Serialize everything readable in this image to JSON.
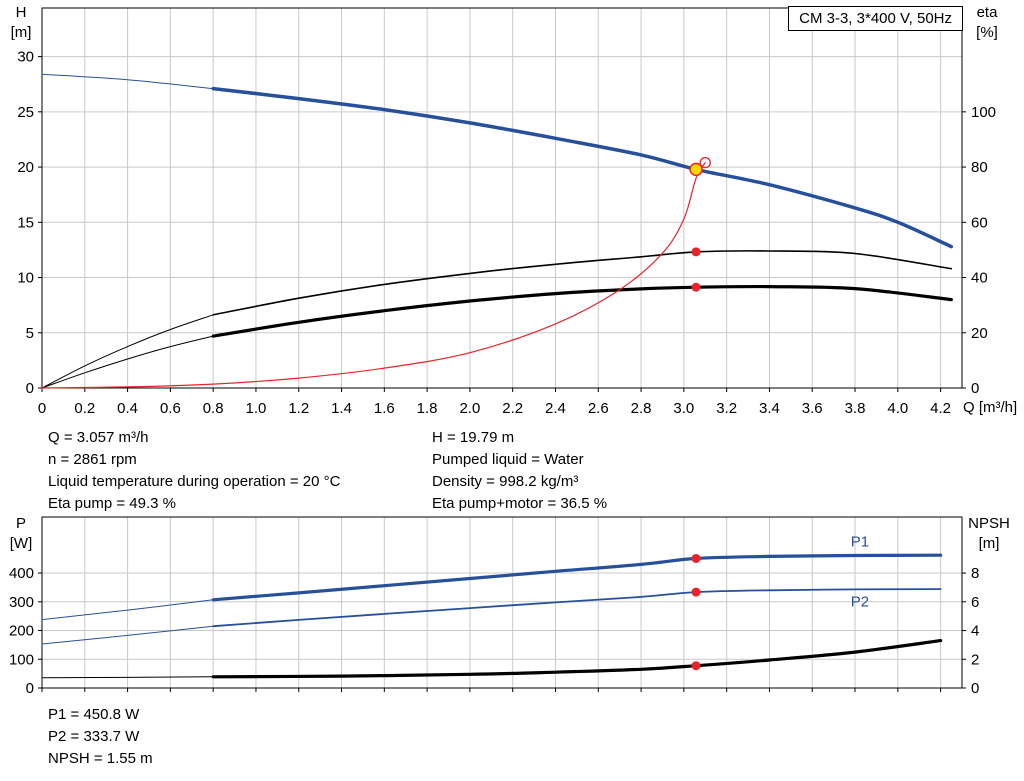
{
  "title_box": "CM 3-3, 3*400 V, 50Hz",
  "colors": {
    "curve_blue": "#27509B",
    "curve_red": "#E8232A",
    "curve_black": "#000000",
    "duty_point_yellow": "#FFD500",
    "grid_gray": "#C9C9C9"
  },
  "top_chart": {
    "left_axis_title_1": "H",
    "left_axis_title_2": "[m]",
    "right_axis_title_1": "eta",
    "right_axis_title_2": "[%]",
    "x_axis_title": "Q [m³/h]"
  },
  "bottom_chart": {
    "left_axis_title_1": "P",
    "left_axis_title_2": "[W]",
    "right_axis_title_1": "NPSH",
    "right_axis_title_2": "[m]"
  },
  "info": {
    "left": [
      "Q = 3.057 m³/h",
      "n = 2861 rpm",
      "Liquid temperature during operation = 20 °C",
      "Eta pump = 49.3 %"
    ],
    "right": [
      "H = 19.79 m",
      "Pumped liquid = Water",
      "Density = 998.2 kg/m³",
      "Eta pump+motor = 36.5 %"
    ]
  },
  "results": [
    "P1 = 450.8 W",
    "P2 = 333.7 W",
    "NPSH = 1.55 m"
  ],
  "chart_data": [
    {
      "type": "line",
      "title": "CM 3-3, 3*400 V, 50Hz",
      "xlabel": "Q [m³/h]",
      "ylabel_left": "H [m]",
      "ylabel_right": "eta [%]",
      "xlim": [
        0,
        4.3
      ],
      "ylim": [
        0,
        34.4
      ],
      "grid": true,
      "x_ticks": [
        0,
        0.2,
        0.4,
        0.6,
        0.8,
        1.0,
        1.2,
        1.4,
        1.6,
        1.8,
        2.0,
        2.2,
        2.4,
        2.6,
        2.8,
        3.0,
        3.2,
        3.4,
        3.6,
        3.8,
        4.0,
        4.2
      ],
      "y_ticks": [
        0,
        5,
        10,
        15,
        20,
        25,
        30
      ],
      "right_ticks": [
        0,
        20,
        40,
        60,
        80,
        100
      ],
      "right_scale": 0.25,
      "series": [
        {
          "name": "head-curve-lowflow",
          "color": "#27509B",
          "width": 1,
          "points": [
            [
              0,
              28.4
            ],
            [
              0.4,
              27.9
            ],
            [
              0.8,
              27.1
            ]
          ]
        },
        {
          "name": "head-curve",
          "color": "#27509B",
          "width": 3.5,
          "points": [
            [
              0.8,
              27.1
            ],
            [
              1.2,
              26.2
            ],
            [
              1.6,
              25.2
            ],
            [
              2.0,
              24.0
            ],
            [
              2.4,
              22.6
            ],
            [
              2.8,
              21.1
            ],
            [
              3.057,
              19.79
            ],
            [
              3.4,
              18.4
            ],
            [
              3.8,
              16.3
            ],
            [
              4.0,
              15.0
            ],
            [
              4.25,
              12.8
            ]
          ]
        },
        {
          "name": "eta-pump-curve-lowflow",
          "color": "#000000",
          "width": 1,
          "scale": 0.25,
          "points": [
            [
              0,
              0
            ],
            [
              0.2,
              8
            ],
            [
              0.4,
              15
            ],
            [
              0.6,
              21.2
            ],
            [
              0.8,
              26.5
            ]
          ]
        },
        {
          "name": "eta-pump-curve",
          "color": "#000000",
          "width": 1.6,
          "scale": 0.25,
          "points": [
            [
              0.8,
              26.5
            ],
            [
              1.2,
              32.5
            ],
            [
              1.6,
              37.5
            ],
            [
              2.0,
              41.5
            ],
            [
              2.4,
              44.8
            ],
            [
              2.8,
              47.5
            ],
            [
              3.057,
              49.3
            ],
            [
              3.4,
              49.6
            ],
            [
              3.8,
              48.7
            ],
            [
              4.25,
              43.2
            ]
          ]
        },
        {
          "name": "eta-pump-motor-curve-lowflow",
          "color": "#000000",
          "width": 1,
          "scale": 0.25,
          "points": [
            [
              0,
              0
            ],
            [
              0.2,
              5.5
            ],
            [
              0.4,
              10.5
            ],
            [
              0.6,
              15
            ],
            [
              0.8,
              18.8
            ]
          ]
        },
        {
          "name": "eta-pump-motor-curve",
          "color": "#000000",
          "width": 3.2,
          "scale": 0.25,
          "points": [
            [
              0.8,
              18.8
            ],
            [
              1.2,
              23.8
            ],
            [
              1.6,
              28.0
            ],
            [
              2.0,
              31.5
            ],
            [
              2.4,
              34.2
            ],
            [
              2.8,
              35.9
            ],
            [
              3.057,
              36.5
            ],
            [
              3.4,
              36.7
            ],
            [
              3.8,
              36.0
            ],
            [
              4.25,
              32.0
            ]
          ]
        },
        {
          "name": "system-curve",
          "color": "#E8232A",
          "width": 1.2,
          "points": [
            [
              0,
              0
            ],
            [
              0.4,
              0.1
            ],
            [
              0.8,
              0.35
            ],
            [
              1.2,
              0.9
            ],
            [
              1.6,
              1.8
            ],
            [
              2.0,
              3.2
            ],
            [
              2.4,
              5.8
            ],
            [
              2.7,
              8.9
            ],
            [
              2.9,
              12.2
            ],
            [
              3.0,
              15.3
            ],
            [
              3.057,
              19.0
            ],
            [
              3.1,
              20.4
            ]
          ]
        }
      ],
      "markers": [
        {
          "name": "duty-point-ring",
          "x": 3.1,
          "y": 20.4,
          "r": 5,
          "fill": "none",
          "stroke": "#E8232A",
          "sw": 1.3
        },
        {
          "name": "duty-point",
          "x": 3.057,
          "y": 19.79,
          "r": 6,
          "fill": "#FFD500",
          "stroke": "#E8232A",
          "sw": 1.5
        },
        {
          "name": "eta-pump-point",
          "x": 3.057,
          "y": 49.3,
          "scale": 0.25,
          "r": 4.5,
          "fill": "#E8232A"
        },
        {
          "name": "eta-pump-motor-point",
          "x": 3.057,
          "y": 36.5,
          "scale": 0.25,
          "r": 4.5,
          "fill": "#E8232A"
        }
      ],
      "labels": []
    },
    {
      "type": "line",
      "title": "",
      "xlabel": "",
      "ylabel_left": "P [W]",
      "ylabel_right": "NPSH [m]",
      "xlim": [
        0,
        4.3
      ],
      "ylim": [
        0,
        595
      ],
      "grid": true,
      "x_ticks": [
        0,
        0.2,
        0.4,
        0.6,
        0.8,
        1.0,
        1.2,
        1.4,
        1.6,
        1.8,
        2.0,
        2.2,
        2.4,
        2.6,
        2.8,
        3.0,
        3.2,
        3.4,
        3.6,
        3.8,
        4.0,
        4.2
      ],
      "y_ticks": [
        0,
        100,
        200,
        300,
        400
      ],
      "right_ticks": [
        0,
        2,
        4,
        6,
        8
      ],
      "right_scale": 50,
      "series": [
        {
          "name": "p1-curve-lowflow",
          "color": "#27509B",
          "width": 1,
          "points": [
            [
              0,
              238
            ],
            [
              0.4,
              271
            ],
            [
              0.8,
              307
            ]
          ]
        },
        {
          "name": "p1-curve",
          "color": "#27509B",
          "width": 3.2,
          "points": [
            [
              0.8,
              307
            ],
            [
              1.2,
              331
            ],
            [
              1.6,
              356
            ],
            [
              2.0,
              381
            ],
            [
              2.4,
              406
            ],
            [
              2.8,
              430
            ],
            [
              3.057,
              450.8
            ],
            [
              3.4,
              458
            ],
            [
              3.8,
              461
            ],
            [
              4.2,
              462
            ]
          ]
        },
        {
          "name": "p2-curve-lowflow",
          "color": "#27509B",
          "width": 1,
          "points": [
            [
              0,
              153
            ],
            [
              0.4,
              183
            ],
            [
              0.8,
              215
            ]
          ]
        },
        {
          "name": "p2-curve",
          "color": "#27509B",
          "width": 1.8,
          "points": [
            [
              0.8,
              215
            ],
            [
              1.2,
              237
            ],
            [
              1.6,
              258
            ],
            [
              2.0,
              278
            ],
            [
              2.4,
              298
            ],
            [
              2.8,
              317
            ],
            [
              3.057,
              333.7
            ],
            [
              3.4,
              340
            ],
            [
              3.8,
              343
            ],
            [
              4.2,
              344
            ]
          ]
        },
        {
          "name": "npsh-curve-lowflow",
          "color": "#000000",
          "width": 1,
          "scale": 50,
          "points": [
            [
              0,
              0.72
            ],
            [
              0.4,
              0.74
            ],
            [
              0.8,
              0.78
            ]
          ]
        },
        {
          "name": "npsh-curve",
          "color": "#000000",
          "width": 3.2,
          "scale": 50,
          "points": [
            [
              0.8,
              0.78
            ],
            [
              1.4,
              0.83
            ],
            [
              2.0,
              0.95
            ],
            [
              2.4,
              1.1
            ],
            [
              2.8,
              1.3
            ],
            [
              3.057,
              1.55
            ],
            [
              3.4,
              1.95
            ],
            [
              3.8,
              2.5
            ],
            [
              4.2,
              3.3
            ]
          ]
        }
      ],
      "markers": [
        {
          "name": "p1-point",
          "x": 3.057,
          "y": 450.8,
          "r": 4.5,
          "fill": "#E8232A"
        },
        {
          "name": "p2-point",
          "x": 3.057,
          "y": 333.7,
          "r": 4.5,
          "fill": "#E8232A"
        },
        {
          "name": "npsh-point",
          "x": 3.057,
          "y": 1.55,
          "scale": 50,
          "r": 4.5,
          "fill": "#E8232A"
        }
      ],
      "labels": [
        {
          "name": "p1-curve-label",
          "text": "P1",
          "x": 3.78,
          "y": 492,
          "color": "#27509B"
        },
        {
          "name": "p2-curve-label",
          "text": "P2",
          "x": 3.78,
          "y": 283,
          "color": "#27509B"
        }
      ]
    }
  ]
}
